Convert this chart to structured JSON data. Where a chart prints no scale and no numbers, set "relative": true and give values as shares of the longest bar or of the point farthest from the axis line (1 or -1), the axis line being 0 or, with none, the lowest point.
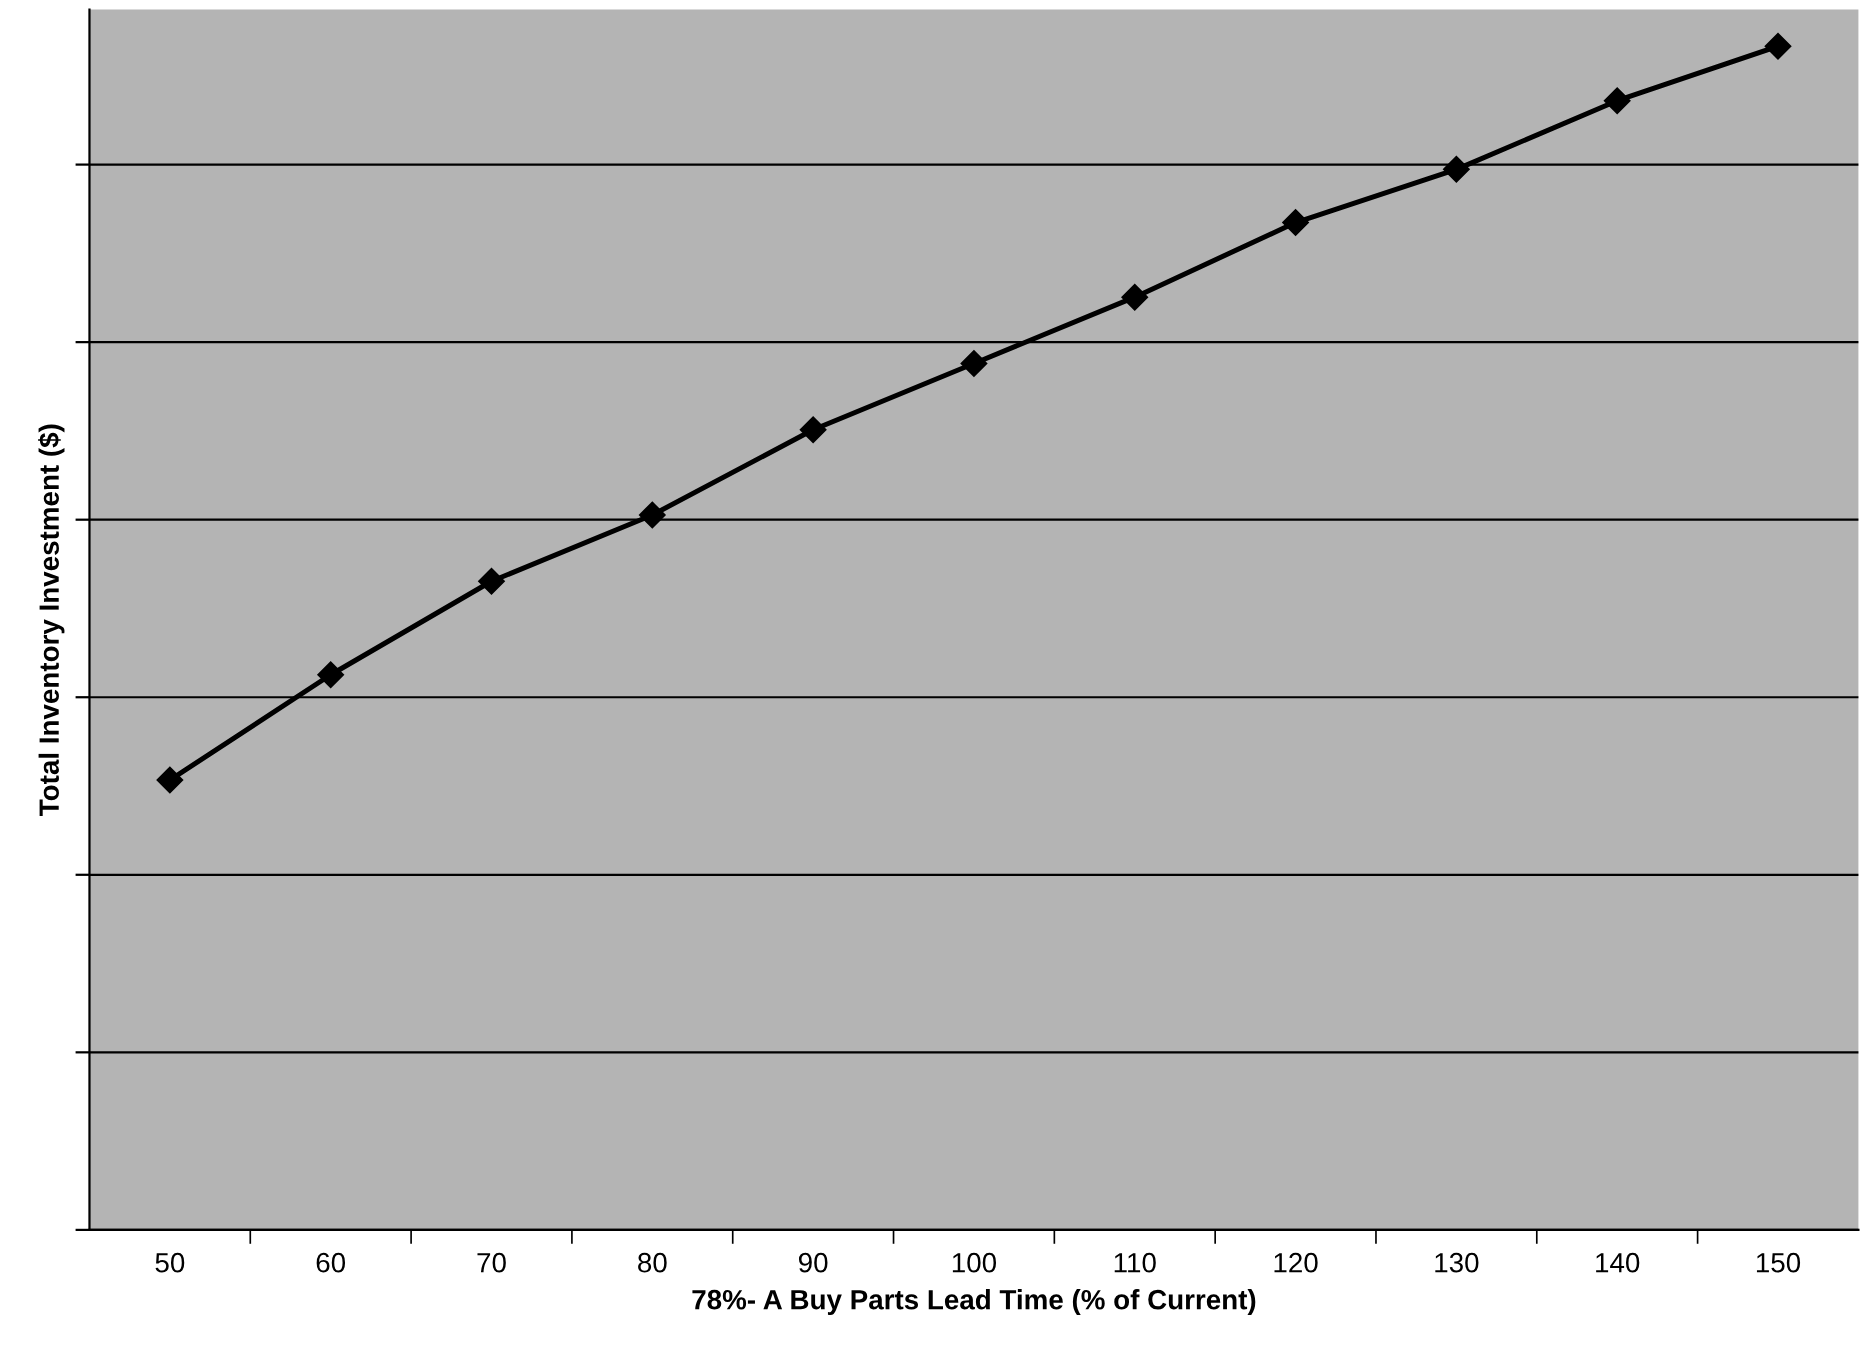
{
  "chart_data": {
    "type": "line",
    "relative": true,
    "xlabel": "78%- A Buy Parts Lead Time (% of Current)",
    "ylabel": "Total Inventory Investment ($)",
    "categories": [
      "50",
      "60",
      "70",
      "80",
      "90",
      "100",
      "110",
      "120",
      "130",
      "140",
      "150"
    ],
    "series": [
      {
        "color": "#000000",
        "values": [
          0.38,
          0.469,
          0.548,
          0.604,
          0.676,
          0.732,
          0.788,
          0.851,
          0.896,
          0.954,
          1
        ]
      }
    ],
    "marker": "diamond",
    "line_style": "solid",
    "grid": "y",
    "legend": false,
    "tick_labels": "x"
  }
}
